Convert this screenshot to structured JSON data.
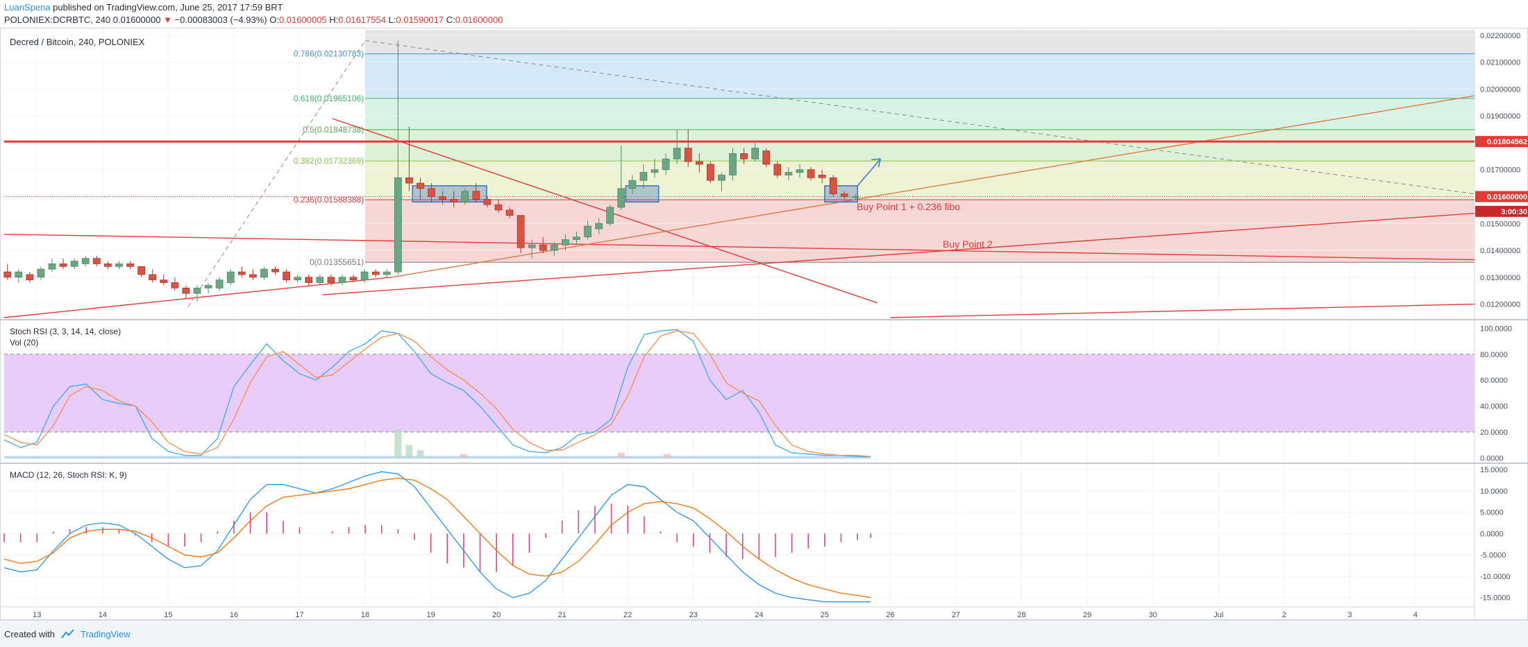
{
  "header": {
    "author": "LuanSpena",
    "published_text": "published on TradingView.com, June 25, 2017 17:59 BRT",
    "symbol": "POLONIEX:DCRBTC, 240",
    "last": "0.01600000",
    "change_arrow": "▼",
    "change": "−0.00083003 (−4.93%)",
    "ohlc": [
      {
        "label": "O:",
        "value": "0.01600005"
      },
      {
        "label": "H:",
        "value": "0.01617554"
      },
      {
        "label": "L:",
        "value": "0.01590017"
      },
      {
        "label": "C:",
        "value": "0.01600000"
      }
    ]
  },
  "footer": {
    "created_with": "Created with",
    "brand": "TradingView"
  },
  "colors": {
    "up": "#6ba583",
    "down": "#d75442",
    "stoch_k": "#3ca9f2",
    "stoch_d": "#f98c4c",
    "macd_line": "#2196f3",
    "signal_line": "#ff6d00",
    "histogram": "#e0418a",
    "trendline": "#e53935",
    "zone_box": "#3f6ebf"
  },
  "chart_data": [
    {
      "type": "candlestick",
      "title": "Decred / Bitcoin, 240, POLONIEX",
      "ylim": [
        0.0115,
        0.0222
      ],
      "y_ticks": [
        "0.02200000",
        "0.02100000",
        "0.02000000",
        "0.01900000",
        "0.01800000",
        "0.01700000",
        "0.01600000",
        "0.01500000",
        "0.01400000",
        "0.01300000",
        "0.01200000"
      ],
      "x_ticks": [
        "13",
        "14",
        "15",
        "16",
        "17",
        "18",
        "19",
        "20",
        "21",
        "22",
        "23",
        "24",
        "25",
        "26",
        "27",
        "28",
        "29",
        "30",
        "Jul",
        "2",
        "3",
        "4"
      ],
      "x_tick_positions": [
        13,
        14,
        15,
        16,
        17,
        18,
        19,
        20,
        21,
        22,
        23,
        24,
        25,
        26,
        27,
        28,
        29,
        30,
        31,
        32,
        33,
        34
      ],
      "price_labels": [
        {
          "text": "0.01804562",
          "value": 0.01804562
        },
        {
          "text": "0.01600000",
          "value": 0.016
        },
        {
          "text": "3:00:30",
          "value": 0.01545
        }
      ],
      "horizontal_level": 0.01804562,
      "fib_levels": [
        {
          "label": "0.786(0.02130783)",
          "value": 0.02130783,
          "color": "#4a90c7"
        },
        {
          "label": "0.618(0.01965106)",
          "value": 0.01965106,
          "color": "#3cb371"
        },
        {
          "label": "0.5(0.01848738)",
          "value": 0.01848738,
          "color": "#4caf50"
        },
        {
          "label": "0.382(0.01732369)",
          "value": 0.01732369,
          "color": "#8bc34a"
        },
        {
          "label": "0.236(0.01588388)",
          "value": 0.01588388,
          "color": "#e53935"
        },
        {
          "label": "0(0.01355651)",
          "value": 0.01355651,
          "color": "#787b86"
        }
      ],
      "fib_top": 0.0222,
      "annotations": [
        {
          "text": "Buy Point 1 + 0.236 fibo",
          "x": 25.5,
          "y": 0.0155
        },
        {
          "text": "Buy Point 2",
          "x": 27.3,
          "y": 0.0141
        }
      ],
      "candles": [
        [
          12.55,
          0.0132,
          0.0135,
          0.0129,
          0.013
        ],
        [
          12.72,
          0.013,
          0.0133,
          0.0128,
          0.0132
        ],
        [
          12.89,
          0.0131,
          0.0132,
          0.0128,
          0.0129
        ],
        [
          13.06,
          0.013,
          0.0134,
          0.0129,
          0.0133
        ],
        [
          13.23,
          0.0133,
          0.0137,
          0.0132,
          0.0135
        ],
        [
          13.4,
          0.0135,
          0.0137,
          0.0133,
          0.0134
        ],
        [
          13.57,
          0.0134,
          0.0137,
          0.0133,
          0.0136
        ],
        [
          13.74,
          0.0135,
          0.0138,
          0.0134,
          0.0137
        ],
        [
          13.91,
          0.0137,
          0.0138,
          0.0134,
          0.0135
        ],
        [
          14.08,
          0.0135,
          0.0136,
          0.0133,
          0.0134
        ],
        [
          14.25,
          0.0134,
          0.0136,
          0.0133,
          0.0135
        ],
        [
          14.42,
          0.0135,
          0.0136,
          0.0133,
          0.0134
        ],
        [
          14.59,
          0.0134,
          0.0134,
          0.013,
          0.0131
        ],
        [
          14.76,
          0.0131,
          0.0133,
          0.0128,
          0.0129
        ],
        [
          14.93,
          0.0129,
          0.0131,
          0.0127,
          0.0128
        ],
        [
          15.1,
          0.0128,
          0.013,
          0.0125,
          0.0126
        ],
        [
          15.27,
          0.0126,
          0.0127,
          0.0122,
          0.0124
        ],
        [
          15.44,
          0.0124,
          0.0127,
          0.0121,
          0.0126
        ],
        [
          15.61,
          0.0126,
          0.0128,
          0.0124,
          0.0127
        ],
        [
          15.78,
          0.0126,
          0.013,
          0.0125,
          0.0129
        ],
        [
          15.95,
          0.0128,
          0.0133,
          0.0127,
          0.0132
        ],
        [
          16.12,
          0.0132,
          0.0134,
          0.013,
          0.0131
        ],
        [
          16.29,
          0.0131,
          0.0133,
          0.0129,
          0.013
        ],
        [
          16.46,
          0.013,
          0.0134,
          0.0129,
          0.0133
        ],
        [
          16.63,
          0.0133,
          0.0134,
          0.0131,
          0.0132
        ],
        [
          16.8,
          0.0132,
          0.0133,
          0.0128,
          0.0129
        ],
        [
          16.97,
          0.0129,
          0.0131,
          0.0128,
          0.013
        ],
        [
          17.14,
          0.013,
          0.0131,
          0.0127,
          0.0128
        ],
        [
          17.31,
          0.0128,
          0.0131,
          0.0127,
          0.013
        ],
        [
          17.48,
          0.013,
          0.0131,
          0.0127,
          0.0128
        ],
        [
          17.65,
          0.0128,
          0.0131,
          0.0127,
          0.013
        ],
        [
          17.82,
          0.013,
          0.0131,
          0.0128,
          0.0129
        ],
        [
          17.99,
          0.0129,
          0.0133,
          0.0128,
          0.0132
        ],
        [
          18.16,
          0.0132,
          0.0133,
          0.013,
          0.0131
        ],
        [
          18.33,
          0.0131,
          0.0133,
          0.013,
          0.0132
        ],
        [
          18.5,
          0.0132,
          0.0218,
          0.0131,
          0.0167
        ],
        [
          18.67,
          0.0167,
          0.0186,
          0.0162,
          0.0165
        ],
        [
          18.84,
          0.0165,
          0.0167,
          0.0159,
          0.0163
        ],
        [
          19.01,
          0.0163,
          0.0165,
          0.0158,
          0.016
        ],
        [
          19.18,
          0.016,
          0.0162,
          0.0157,
          0.0159
        ],
        [
          19.35,
          0.0159,
          0.0162,
          0.0156,
          0.0158
        ],
        [
          19.52,
          0.0158,
          0.0163,
          0.0157,
          0.0162
        ],
        [
          19.69,
          0.0162,
          0.0165,
          0.0158,
          0.0159
        ],
        [
          19.86,
          0.0159,
          0.016,
          0.0156,
          0.0157
        ],
        [
          20.03,
          0.0157,
          0.0159,
          0.0154,
          0.0155
        ],
        [
          20.2,
          0.0155,
          0.0156,
          0.0152,
          0.0153
        ],
        [
          20.37,
          0.0153,
          0.0153,
          0.0139,
          0.0141
        ],
        [
          20.54,
          0.0141,
          0.0144,
          0.0137,
          0.0142
        ],
        [
          20.71,
          0.0142,
          0.0145,
          0.0139,
          0.014
        ],
        [
          20.88,
          0.014,
          0.0143,
          0.0138,
          0.0142
        ],
        [
          21.05,
          0.0142,
          0.0146,
          0.014,
          0.0144
        ],
        [
          21.22,
          0.0144,
          0.0147,
          0.0142,
          0.0145
        ],
        [
          21.39,
          0.0145,
          0.0151,
          0.0144,
          0.0149
        ],
        [
          21.56,
          0.0148,
          0.0152,
          0.0146,
          0.015
        ],
        [
          21.73,
          0.015,
          0.0157,
          0.0149,
          0.0156
        ],
        [
          21.9,
          0.0156,
          0.0179,
          0.0155,
          0.0163
        ],
        [
          22.07,
          0.0163,
          0.0168,
          0.0161,
          0.0166
        ],
        [
          22.24,
          0.0166,
          0.0172,
          0.0163,
          0.0169
        ],
        [
          22.41,
          0.0169,
          0.0174,
          0.0167,
          0.017
        ],
        [
          22.58,
          0.017,
          0.0176,
          0.0168,
          0.0174
        ],
        [
          22.75,
          0.0174,
          0.0185,
          0.0172,
          0.0178
        ],
        [
          22.92,
          0.0178,
          0.0185,
          0.0171,
          0.0173
        ],
        [
          23.09,
          0.0173,
          0.0176,
          0.0169,
          0.0172
        ],
        [
          23.26,
          0.0172,
          0.0173,
          0.0165,
          0.0166
        ],
        [
          23.43,
          0.0166,
          0.0169,
          0.0162,
          0.0168
        ],
        [
          23.6,
          0.0168,
          0.0178,
          0.0166,
          0.0176
        ],
        [
          23.77,
          0.0176,
          0.0178,
          0.0172,
          0.0174
        ],
        [
          23.94,
          0.0174,
          0.018,
          0.0173,
          0.0178
        ],
        [
          24.11,
          0.0177,
          0.0178,
          0.0171,
          0.0172
        ],
        [
          24.28,
          0.0172,
          0.0173,
          0.0167,
          0.0168
        ],
        [
          24.45,
          0.0168,
          0.0171,
          0.0166,
          0.0169
        ],
        [
          24.62,
          0.0169,
          0.0172,
          0.0167,
          0.017
        ],
        [
          24.79,
          0.017,
          0.0171,
          0.0166,
          0.0167
        ],
        [
          24.96,
          0.0168,
          0.017,
          0.0165,
          0.0167
        ],
        [
          25.13,
          0.0167,
          0.0168,
          0.016,
          0.0161
        ],
        [
          25.3,
          0.0161,
          0.0162,
          0.0159,
          0.016
        ],
        [
          25.47,
          0.016,
          0.0161,
          0.0159,
          0.016
        ]
      ],
      "zones": [
        {
          "x0": 18.72,
          "x1": 19.85,
          "y0": 0.0158,
          "y1": 0.0164
        },
        {
          "x0": 21.97,
          "x1": 22.47,
          "y0": 0.0158,
          "y1": 0.0164
        },
        {
          "x0": 25.0,
          "x1": 25.5,
          "y0": 0.0158,
          "y1": 0.0164
        }
      ],
      "trendlines": [
        {
          "x0": 12.5,
          "y0": 0.0146,
          "x1": 34.9,
          "y1": 0.01365,
          "color": "#e53935",
          "dash": false
        },
        {
          "x0": 12.5,
          "y0": 0.0115,
          "x1": 18.4,
          "y1": 0.013,
          "color": "#e53935",
          "dash": false
        },
        {
          "x0": 17.35,
          "y0": 0.01235,
          "x1": 34.9,
          "y1": 0.01538,
          "color": "#e53935",
          "dash": false
        },
        {
          "x0": 17.5,
          "y0": 0.0189,
          "x1": 25.8,
          "y1": 0.01205,
          "color": "#e53935",
          "dash": false
        },
        {
          "x0": 26.0,
          "y0": 0.0115,
          "x1": 34.9,
          "y1": 0.012,
          "color": "#e53935",
          "dash": false
        },
        {
          "x0": 18.4,
          "y0": 0.013,
          "x1": 34.9,
          "y1": 0.01975,
          "color": "#e0783e",
          "dash": false
        },
        {
          "x0": 15.3,
          "y0": 0.0119,
          "x1": 18.0,
          "y1": 0.0218,
          "color": "#888888",
          "dash": true
        },
        {
          "x0": 18.0,
          "y0": 0.0218,
          "x1": 34.9,
          "y1": 0.0161,
          "color": "#888888",
          "dash": true
        }
      ],
      "arrow": {
        "x0": 25.5,
        "y0": 0.0164,
        "x1": 25.85,
        "y1": 0.0174
      }
    },
    {
      "type": "line",
      "title": "Stoch RSI (3, 3, 14, 14, close)",
      "subtitle": "Vol (20)",
      "ylim": [
        -3,
        105
      ],
      "y_ticks": [
        "100.0000",
        "80.0000",
        "60.0000",
        "40.0000",
        "20.0000",
        "0.0000"
      ],
      "bands": [
        80,
        20
      ],
      "x": [
        12.5,
        12.75,
        13.0,
        13.25,
        13.5,
        13.75,
        14.0,
        14.25,
        14.5,
        14.75,
        15.0,
        15.25,
        15.5,
        15.75,
        16.0,
        16.25,
        16.5,
        16.75,
        17.0,
        17.25,
        17.5,
        17.75,
        18.0,
        18.25,
        18.5,
        18.75,
        19.0,
        19.25,
        19.5,
        19.75,
        20.0,
        20.25,
        20.5,
        20.75,
        21.0,
        21.25,
        21.5,
        21.75,
        22.0,
        22.25,
        22.5,
        22.75,
        23.0,
        23.25,
        23.5,
        23.75,
        24.0,
        24.25,
        24.5,
        24.75,
        25.0,
        25.25,
        25.5,
        25.7
      ],
      "series": [
        {
          "values": [
            14,
            8,
            12,
            40,
            55,
            57,
            45,
            42,
            40,
            15,
            5,
            2,
            2,
            15,
            55,
            72,
            88,
            75,
            65,
            60,
            70,
            82,
            88,
            98,
            96,
            82,
            65,
            58,
            52,
            40,
            25,
            10,
            5,
            4,
            8,
            18,
            20,
            30,
            70,
            95,
            98,
            99,
            90,
            60,
            45,
            52,
            35,
            10,
            4,
            3,
            2,
            2,
            1,
            1
          ]
        },
        {
          "values": [
            18,
            12,
            10,
            25,
            48,
            55,
            52,
            44,
            40,
            28,
            12,
            5,
            3,
            8,
            30,
            58,
            78,
            82,
            72,
            62,
            64,
            74,
            84,
            93,
            96,
            90,
            78,
            68,
            60,
            50,
            38,
            22,
            12,
            6,
            6,
            12,
            18,
            26,
            48,
            78,
            94,
            98,
            96,
            80,
            58,
            50,
            44,
            25,
            10,
            5,
            3,
            2,
            2,
            1
          ]
        }
      ],
      "volume": [
        {
          "x": 18.5,
          "v": 22
        },
        {
          "x": 18.67,
          "v": 10
        },
        {
          "x": 18.84,
          "v": 6
        },
        {
          "x": 19.5,
          "v": 3
        },
        {
          "x": 21.9,
          "v": 4
        },
        {
          "x": 22.6,
          "v": 3
        }
      ]
    },
    {
      "type": "line",
      "title": "MACD (12, 26, Stoch RSI: K, 9)",
      "ylim": [
        -17,
        16
      ],
      "y_ticks": [
        "15.0000",
        "10.0000",
        "5.0000",
        "0.0000",
        "-5.0000",
        "-10.0000",
        "-15.0000"
      ],
      "x": [
        12.5,
        12.75,
        13.0,
        13.25,
        13.5,
        13.75,
        14.0,
        14.25,
        14.5,
        14.75,
        15.0,
        15.25,
        15.5,
        15.75,
        16.0,
        16.25,
        16.5,
        16.75,
        17.0,
        17.25,
        17.5,
        17.75,
        18.0,
        18.25,
        18.5,
        18.75,
        19.0,
        19.25,
        19.5,
        19.75,
        20.0,
        20.25,
        20.5,
        20.75,
        21.0,
        21.25,
        21.5,
        21.75,
        22.0,
        22.25,
        22.5,
        22.75,
        23.0,
        23.25,
        23.5,
        23.75,
        24.0,
        24.25,
        24.5,
        24.75,
        25.0,
        25.25,
        25.5,
        25.7
      ],
      "series": [
        {
          "values": [
            -8,
            -9,
            -8.5,
            -4,
            0,
            2,
            2.5,
            2,
            0,
            -3,
            -6,
            -8,
            -7.5,
            -4,
            2,
            8,
            11.5,
            11.5,
            10.5,
            9.5,
            10.5,
            12,
            13.5,
            14.5,
            14,
            11,
            6,
            1,
            -4,
            -9,
            -13,
            -15,
            -14,
            -11,
            -6,
            -1,
            4,
            9,
            11.5,
            11,
            8,
            5,
            3,
            -1,
            -5,
            -9,
            -12,
            -14,
            -15,
            -15.5,
            -16,
            -16,
            -16,
            -16
          ]
        },
        {
          "values": [
            -6,
            -7,
            -6.5,
            -4.5,
            -1,
            0.5,
            1,
            1,
            0.5,
            -1,
            -3,
            -5,
            -5.5,
            -4.5,
            -1,
            3,
            6.5,
            8.5,
            9,
            9.5,
            10,
            10.5,
            11.5,
            12.5,
            13,
            12.5,
            10.5,
            8,
            4,
            0,
            -4,
            -7.5,
            -9.5,
            -10,
            -9,
            -6.5,
            -2.5,
            2,
            5,
            7,
            7.5,
            7,
            6,
            3.5,
            0.5,
            -3,
            -6,
            -8.5,
            -10.5,
            -12,
            -13,
            -14,
            -14.5,
            -15
          ]
        }
      ]
    }
  ]
}
